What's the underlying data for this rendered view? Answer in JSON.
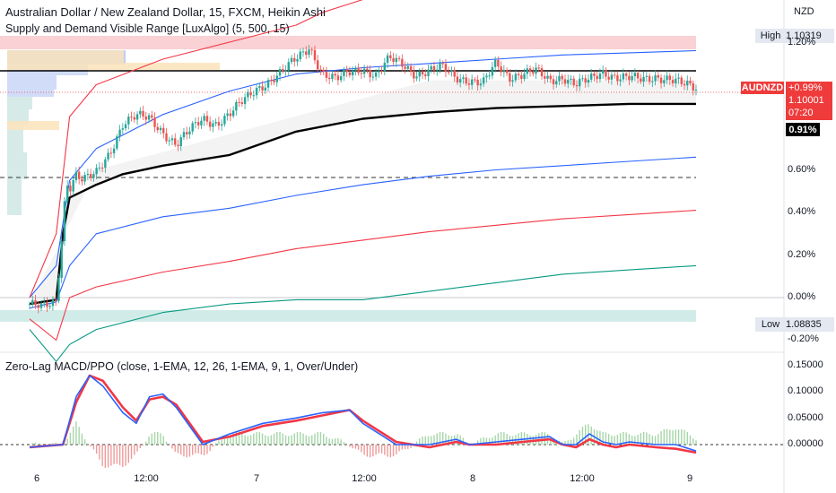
{
  "header": {
    "title": "Australian Dollar / New Zealand Dollar, 15, FXCM, Heikin Ashi",
    "indicator": "Supply and Demand Visible Range [LuxAlgo] (5, 500, 15)",
    "oscillator": "Zero-Lag MACD/PPO (close, 1-EMA, 12, 26, 1-EMA, 9, 1, Over/Under)"
  },
  "price_scale": {
    "currency": "NZD",
    "high_label": "High",
    "high_value": "1.10319",
    "low_label": "Low",
    "low_value": "1.08835",
    "symbol_tag": "AUDNZD",
    "change": "+0.99%",
    "price": "1.10001",
    "countdown": "07:20",
    "vwap_pct": "0.91%"
  },
  "colors": {
    "up": "#26a69a",
    "down": "#ef5350",
    "vwap": "#000000",
    "band_blue": "#2962ff",
    "band_red": "#f23645",
    "band_green": "#089981",
    "macd": "#2962ff",
    "signal": "#f23645",
    "supply_zone": "#f7b2b7",
    "demand_zone": "#b2e0d8",
    "accent": "#ef3b3b"
  },
  "chart_data": [
    {
      "type": "line",
      "title": "Australian Dollar / New Zealand Dollar, 15, FXCM, Heikin Ashi",
      "y_unit": "% change",
      "x_ticks": [
        "6",
        "12:00",
        "7",
        "12:00",
        "8",
        "12:00",
        "9"
      ],
      "y_ticks": [
        "1.20%",
        "0.60%",
        "0.40%",
        "0.20%",
        "0.00%",
        "-0.20%"
      ],
      "ylim": [
        -0.25,
        1.35
      ],
      "price": {
        "x": [
          0,
          0.02,
          0.04,
          0.05,
          0.055,
          0.06,
          0.07,
          0.08,
          0.1,
          0.12,
          0.14,
          0.16,
          0.18,
          0.2,
          0.22,
          0.24,
          0.26,
          0.28,
          0.3,
          0.32,
          0.34,
          0.36,
          0.38,
          0.4,
          0.42,
          0.44,
          0.46,
          0.48,
          0.5,
          0.52,
          0.54,
          0.56,
          0.58,
          0.6,
          0.62,
          0.64,
          0.66,
          0.68,
          0.7,
          0.72,
          0.74,
          0.76,
          0.78,
          0.8,
          0.82,
          0.84,
          0.86,
          0.88,
          0.9,
          0.92,
          0.94,
          0.96,
          0.98,
          1.0
        ],
        "y": [
          -0.03,
          -0.05,
          -0.02,
          0.35,
          0.55,
          0.52,
          0.58,
          0.55,
          0.58,
          0.68,
          0.82,
          0.85,
          0.84,
          0.78,
          0.72,
          0.78,
          0.84,
          0.82,
          0.86,
          0.92,
          0.98,
          1.02,
          1.06,
          1.12,
          1.18,
          1.05,
          1.02,
          1.06,
          1.08,
          1.04,
          1.12,
          1.1,
          1.05,
          1.06,
          1.08,
          1.04,
          1.02,
          1.0,
          1.1,
          1.04,
          1.05,
          1.06,
          1.02,
          1.04,
          1.0,
          1.02,
          1.06,
          1.04,
          1.03,
          1.02,
          1.04,
          1.03,
          1.0,
          0.98
        ]
      },
      "series": [
        {
          "name": "VWAP",
          "x": [
            0,
            0.04,
            0.05,
            0.06,
            0.08,
            0.1,
            0.14,
            0.2,
            0.3,
            0.4,
            0.5,
            0.6,
            0.7,
            0.8,
            0.9,
            1.0
          ],
          "y": [
            -0.03,
            -0.01,
            0.3,
            0.47,
            0.5,
            0.53,
            0.58,
            0.62,
            0.67,
            0.78,
            0.84,
            0.87,
            0.89,
            0.9,
            0.91,
            0.91
          ]
        },
        {
          "name": "Upper band 1",
          "x": [
            0,
            0.04,
            0.06,
            0.1,
            0.2,
            0.3,
            0.4,
            0.5,
            0.6,
            0.7,
            0.8,
            0.9,
            1.0
          ],
          "y": [
            0.0,
            0.15,
            0.55,
            0.7,
            0.86,
            0.97,
            1.05,
            1.08,
            1.1,
            1.12,
            1.14,
            1.15,
            1.16
          ]
        },
        {
          "name": "Lower band 1",
          "x": [
            0,
            0.04,
            0.06,
            0.1,
            0.2,
            0.3,
            0.4,
            0.5,
            0.6,
            0.7,
            0.8,
            0.9,
            1.0
          ],
          "y": [
            -0.05,
            -0.02,
            0.15,
            0.3,
            0.38,
            0.42,
            0.48,
            0.53,
            0.57,
            0.6,
            0.62,
            0.64,
            0.66
          ]
        },
        {
          "name": "Upper band 2",
          "x": [
            0,
            0.04,
            0.06,
            0.1,
            0.2,
            0.3,
            0.4,
            0.44,
            0.5
          ],
          "y": [
            0.0,
            0.3,
            0.85,
            1.0,
            1.12,
            1.2,
            1.28,
            1.34,
            1.4
          ]
        },
        {
          "name": "Lower band 2",
          "x": [
            0,
            0.04,
            0.06,
            0.1,
            0.2,
            0.3,
            0.4,
            0.5,
            0.6,
            0.7,
            0.8,
            0.9,
            1.0
          ],
          "y": [
            -0.1,
            -0.2,
            0.0,
            0.05,
            0.12,
            0.17,
            0.23,
            0.27,
            0.31,
            0.34,
            0.37,
            0.39,
            0.41
          ]
        },
        {
          "name": "Lower band 3",
          "x": [
            0,
            0.04,
            0.06,
            0.1,
            0.2,
            0.3,
            0.4,
            0.5,
            0.6,
            0.7,
            0.8,
            0.9,
            1.0
          ],
          "y": [
            -0.15,
            -0.3,
            -0.22,
            -0.15,
            -0.07,
            -0.03,
            -0.01,
            -0.01,
            0.03,
            0.07,
            0.11,
            0.13,
            0.15
          ]
        }
      ],
      "levels": {
        "high": 1.10319,
        "low": 1.08835,
        "high_pct": 1.2,
        "low_pct": -0.15
      }
    },
    {
      "type": "line",
      "title": "Zero-Lag MACD/PPO (close, 1-EMA, 12, 26, 1-EMA, 9, 1, Over/Under)",
      "y_ticks": [
        "0.15000",
        "0.10000",
        "0.05000",
        "0.00000"
      ],
      "ylim": [
        -0.025,
        0.16
      ],
      "series": [
        {
          "name": "MACD",
          "x": [
            0,
            0.05,
            0.07,
            0.09,
            0.11,
            0.14,
            0.16,
            0.18,
            0.2,
            0.22,
            0.26,
            0.3,
            0.35,
            0.4,
            0.44,
            0.48,
            0.5,
            0.55,
            0.6,
            0.64,
            0.66,
            0.7,
            0.74,
            0.78,
            0.8,
            0.82,
            0.84,
            0.86,
            0.88,
            0.9,
            0.94,
            0.97,
            1.0
          ],
          "y": [
            -0.005,
            0.0,
            0.09,
            0.13,
            0.11,
            0.06,
            0.04,
            0.09,
            0.095,
            0.07,
            0.0,
            0.02,
            0.04,
            0.05,
            0.06,
            0.065,
            0.04,
            0.0,
            0.0,
            0.01,
            0.0,
            0.005,
            0.01,
            0.015,
            0.0,
            0.0,
            0.02,
            0.005,
            0.0,
            0.005,
            0.0,
            0.0,
            -0.012
          ]
        },
        {
          "name": "Signal",
          "x": [
            0,
            0.05,
            0.07,
            0.09,
            0.11,
            0.14,
            0.16,
            0.18,
            0.2,
            0.22,
            0.26,
            0.3,
            0.35,
            0.4,
            0.44,
            0.48,
            0.5,
            0.55,
            0.6,
            0.64,
            0.66,
            0.7,
            0.74,
            0.78,
            0.8,
            0.82,
            0.84,
            0.86,
            0.88,
            0.9,
            0.94,
            0.97,
            1.0
          ],
          "y": [
            -0.005,
            0.0,
            0.08,
            0.13,
            0.12,
            0.07,
            0.045,
            0.085,
            0.09,
            0.075,
            0.005,
            0.015,
            0.035,
            0.045,
            0.055,
            0.065,
            0.045,
            0.005,
            -0.005,
            0.005,
            0.0,
            0.0,
            0.005,
            0.01,
            0.0,
            -0.005,
            0.01,
            0.0,
            -0.005,
            0.0,
            -0.005,
            -0.008,
            -0.015
          ]
        }
      ]
    }
  ]
}
